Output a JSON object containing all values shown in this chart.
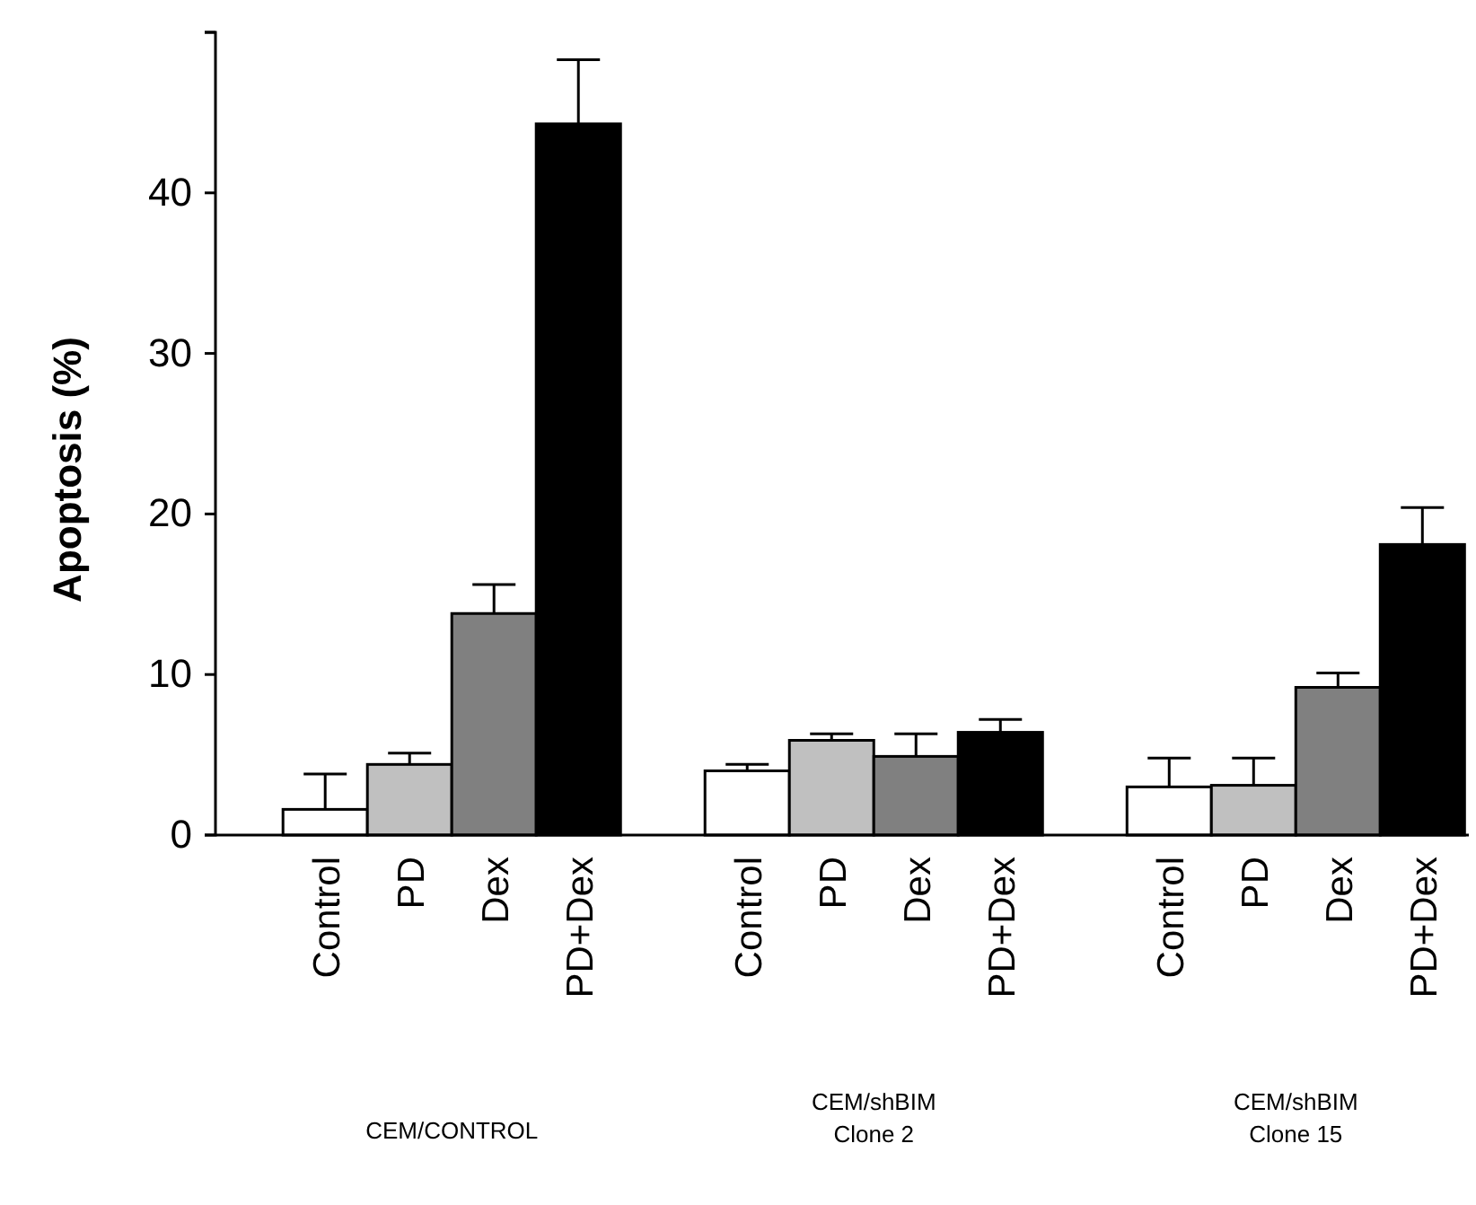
{
  "chart_data": {
    "type": "bar",
    "ylabel": "Apoptosis (%)",
    "categories": [
      "Control",
      "PD",
      "Dex",
      "PD+Dex",
      "Control",
      "PD",
      "Dex",
      "PD+Dex",
      "Control",
      "PD",
      "Dex",
      "PD+Dex"
    ],
    "values": [
      1.6,
      4.4,
      13.8,
      44.3,
      4.0,
      5.9,
      4.9,
      6.4,
      3.0,
      3.1,
      9.2,
      18.1
    ],
    "errors": [
      2.2,
      0.7,
      1.8,
      4.0,
      0.4,
      0.4,
      1.4,
      0.8,
      1.8,
      1.7,
      0.9,
      2.3
    ],
    "colors": [
      "#ffffff",
      "#c0c0c0",
      "#808080",
      "#000000",
      "#ffffff",
      "#c0c0c0",
      "#808080",
      "#000000",
      "#ffffff",
      "#c0c0c0",
      "#808080",
      "#000000"
    ],
    "ylim": [
      0,
      50
    ],
    "yticks": [
      0,
      10,
      20,
      30,
      40,
      {
        "value": 50,
        "label": null
      }
    ],
    "annotations": [
      "CEM/CONTROL",
      "CEM/shBIM\nClone 2",
      "CEM/shBIM\nClone 15"
    ]
  }
}
